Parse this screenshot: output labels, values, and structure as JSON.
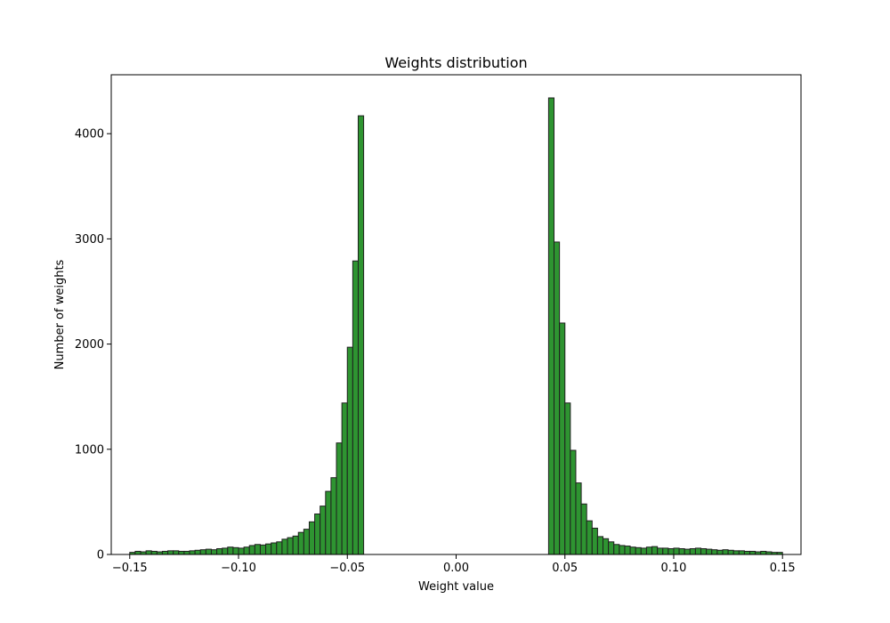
{
  "chart_data": {
    "type": "bar",
    "title": "Weights distribution",
    "xlabel": "Weight value",
    "ylabel": "Number of weights",
    "xlim": [
      -0.1585,
      0.1585
    ],
    "ylim": [
      0,
      4560
    ],
    "xticks": [
      -0.15,
      -0.1,
      -0.05,
      0.0,
      0.05,
      0.1,
      0.15
    ],
    "xtick_labels": [
      "−0.15",
      "−0.10",
      "−0.05",
      "0.00",
      "0.05",
      "0.10",
      "0.15"
    ],
    "yticks": [
      0,
      1000,
      2000,
      3000,
      4000
    ],
    "ytick_labels": [
      "0",
      "1000",
      "2000",
      "3000",
      "4000"
    ],
    "grid": false,
    "bin_range": [
      -0.15,
      0.15
    ],
    "bin_count": 120,
    "bar_color": "#2e9431",
    "edge_color": "#1f1f1f",
    "values": [
      20,
      30,
      25,
      35,
      30,
      25,
      30,
      35,
      35,
      30,
      30,
      35,
      40,
      45,
      50,
      45,
      55,
      60,
      70,
      65,
      60,
      70,
      85,
      95,
      90,
      100,
      110,
      120,
      145,
      160,
      175,
      210,
      240,
      310,
      385,
      460,
      600,
      730,
      1060,
      1440,
      1970,
      2790,
      4170,
      0,
      0,
      0,
      0,
      0,
      0,
      0,
      0,
      0,
      0,
      0,
      0,
      0,
      0,
      0,
      0,
      0,
      0,
      0,
      0,
      0,
      0,
      0,
      0,
      0,
      0,
      0,
      0,
      0,
      0,
      0,
      0,
      0,
      0,
      4340,
      2970,
      2200,
      1440,
      990,
      680,
      480,
      320,
      250,
      170,
      150,
      120,
      95,
      85,
      80,
      70,
      65,
      60,
      70,
      75,
      60,
      60,
      55,
      60,
      55,
      50,
      55,
      60,
      55,
      50,
      45,
      40,
      45,
      40,
      35,
      35,
      30,
      30,
      25,
      30,
      25,
      20,
      20
    ]
  }
}
